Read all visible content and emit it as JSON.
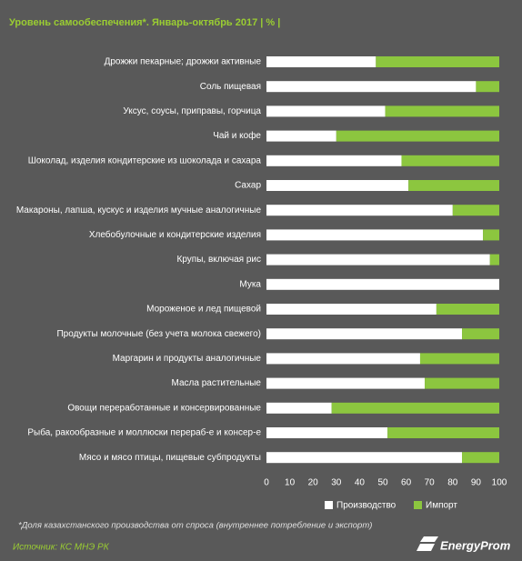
{
  "chart_data": {
    "type": "bar",
    "orientation": "horizontal",
    "stacked": true,
    "title": "Уровень самообеспечения*.  Январь-октябрь  2017 | % |",
    "categories": [
      "Дрожжи пекарные; дрожжи активные",
      "Соль пищевая",
      "Уксус, соусы, приправы, горчица",
      "Чай и кофе",
      "Шоколад, изделия кондитерские из шоколада и сахара",
      "Сахар",
      "Макароны, лапша, кускус и изделия мучные аналогичные",
      "Хлебобулочные и кондитерские изделия",
      "Крупы, включая рис",
      "Мука",
      "Мороженое и лед пищевой",
      "Продукты молочные (без учета молока свежего)",
      "Маргарин и продукты аналогичные",
      "Масла растительные",
      "Овощи переработанные и консервированные",
      "Рыба, ракообразные и моллюски перераб-е и консер-е",
      "Мясо и мясо птицы, пищевые субпродукты"
    ],
    "series": [
      {
        "name": "Производство",
        "color": "#ffffff",
        "values": [
          47,
          90,
          51,
          30,
          58,
          61,
          80,
          93,
          96,
          100,
          73,
          84,
          66,
          68,
          28,
          52,
          84
        ]
      },
      {
        "name": "Импорт",
        "color": "#8cc63f",
        "values": [
          53,
          10,
          49,
          70,
          42,
          39,
          20,
          7,
          4,
          0,
          27,
          16,
          34,
          32,
          72,
          48,
          16
        ]
      }
    ],
    "xlim": [
      0,
      100
    ],
    "xticks": [
      0,
      10,
      20,
      30,
      40,
      50,
      60,
      70,
      80,
      90,
      100
    ],
    "grid": false,
    "legend": "bottom",
    "footnote": "*Доля казахстанского производства от спроса (внутреннее потребление и экспорт)",
    "source": "Источник: КС МНЭ РК",
    "logo": "EnergyProm"
  }
}
